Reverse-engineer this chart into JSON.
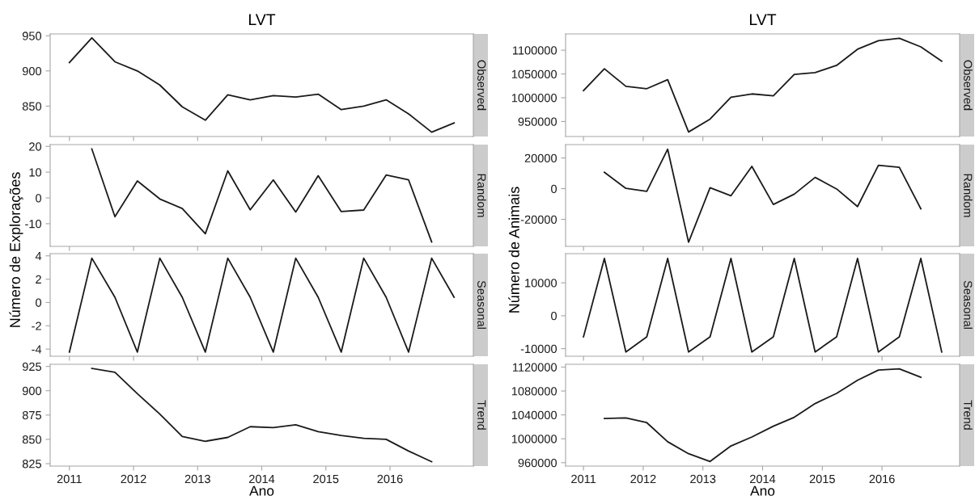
{
  "chart_data": [
    {
      "type": "line",
      "title": "LVT",
      "subtitle": "Observed",
      "ylabel": "Número de Explorações",
      "tick_labels": "y",
      "color": "#1a1a1a",
      "grid": false,
      "x": [
        2011,
        2011.35,
        2011.71,
        2012.06,
        2012.41,
        2012.76,
        2013.12,
        2013.47,
        2013.82,
        2014.18,
        2014.53,
        2014.88,
        2015.24,
        2015.59,
        2015.94,
        2016.29,
        2016.65,
        2017
      ],
      "values": [
        912,
        947,
        913,
        900,
        880,
        849,
        830,
        866,
        859,
        865,
        863,
        867,
        845,
        850,
        859,
        839,
        813,
        826
      ],
      "xlim": [
        2010.7,
        2017.3
      ],
      "xticks": [
        2011,
        2012,
        2013,
        2014,
        2015,
        2016
      ],
      "ylim": [
        806.8,
        952.6
      ],
      "yticks": [
        850,
        900,
        950
      ]
    },
    {
      "type": "line",
      "subtitle": "Random",
      "tick_labels": "y",
      "color": "#1a1a1a",
      "grid": false,
      "x": [
        2011.35,
        2011.71,
        2012.06,
        2012.41,
        2012.76,
        2013.12,
        2013.47,
        2013.82,
        2014.18,
        2014.53,
        2014.88,
        2015.24,
        2015.59,
        2015.94,
        2016.29,
        2016.65
      ],
      "values": [
        19.0,
        -7.3,
        6.6,
        -0.4,
        -4.1,
        -13.9,
        10.5,
        -4.6,
        7.0,
        -5.5,
        8.6,
        -5.3,
        -4.7,
        8.9,
        7.0,
        -17.1
      ],
      "xlim": [
        2010.7,
        2017.3
      ],
      "xticks": [
        2011,
        2012,
        2013,
        2014,
        2015,
        2016
      ],
      "ylim": [
        -18.8,
        20.7
      ],
      "yticks": [
        -10,
        0,
        10,
        20
      ]
    },
    {
      "type": "line",
      "subtitle": "Seasonal",
      "tick_labels": "y",
      "color": "#1a1a1a",
      "grid": false,
      "x": [
        2011,
        2011.35,
        2011.71,
        2012.06,
        2012.41,
        2012.76,
        2013.12,
        2013.47,
        2013.82,
        2014.18,
        2014.53,
        2014.88,
        2015.24,
        2015.59,
        2015.94,
        2016.29,
        2016.65,
        2017
      ],
      "values": [
        -4.25,
        3.8,
        0.45,
        -4.25,
        3.8,
        0.45,
        -4.25,
        3.8,
        0.45,
        -4.25,
        3.8,
        0.45,
        -4.25,
        3.8,
        0.45,
        -4.25,
        3.8,
        0.45
      ],
      "xlim": [
        2010.7,
        2017.3
      ],
      "xticks": [
        2011,
        2012,
        2013,
        2014,
        2015,
        2016
      ],
      "ylim": [
        -4.61,
        4.19
      ],
      "yticks": [
        -4,
        -2,
        0,
        2,
        4
      ]
    },
    {
      "type": "line",
      "subtitle": "Trend",
      "xlabel": "Ano",
      "color": "#1a1a1a",
      "grid": false,
      "x": [
        2011.35,
        2011.71,
        2012.06,
        2012.41,
        2012.76,
        2013.12,
        2013.47,
        2013.82,
        2014.18,
        2014.53,
        2014.88,
        2015.24,
        2015.59,
        2015.94,
        2016.29,
        2016.65
      ],
      "values": [
        923,
        919,
        897,
        876,
        853,
        848,
        852,
        863,
        862,
        865,
        858,
        854,
        851,
        850,
        838,
        827
      ],
      "xlim": [
        2010.7,
        2017.3
      ],
      "xticks": [
        2011,
        2012,
        2013,
        2014,
        2015,
        2016
      ],
      "ylim": [
        822.5,
        927.2
      ],
      "yticks": [
        825,
        850,
        875,
        900,
        925
      ]
    },
    {
      "type": "line",
      "title": "LVT",
      "subtitle": "Observed",
      "ylabel": "Número de Animais",
      "tick_labels": "y",
      "color": "#1a1a1a",
      "grid": false,
      "x": [
        2011,
        2011.35,
        2011.71,
        2012.06,
        2012.41,
        2012.76,
        2013.12,
        2013.47,
        2013.82,
        2014.18,
        2014.53,
        2014.88,
        2015.24,
        2015.59,
        2015.94,
        2016.29,
        2016.65,
        2017
      ],
      "values": [
        1015000,
        1061000,
        1024000,
        1019000,
        1038000,
        928000,
        955000,
        1001000,
        1008000,
        1004000,
        1049000,
        1053000,
        1068000,
        1102000,
        1120000,
        1125000,
        1107000,
        1077000
      ],
      "xlim": [
        2010.7,
        2017.3
      ],
      "xticks": [
        2011,
        2012,
        2013,
        2014,
        2015,
        2016
      ],
      "ylim": [
        918400,
        1134200
      ],
      "yticks": [
        950000,
        1000000,
        1050000,
        1100000
      ]
    },
    {
      "type": "line",
      "subtitle": "Random",
      "tick_labels": "y",
      "color": "#1a1a1a",
      "grid": false,
      "x": [
        2011.35,
        2011.71,
        2012.06,
        2012.41,
        2012.76,
        2013.12,
        2013.47,
        2013.82,
        2014.18,
        2014.53,
        2014.88,
        2015.24,
        2015.59,
        2015.94,
        2016.29,
        2016.65
      ],
      "values": [
        10700,
        200,
        -1800,
        25700,
        -34900,
        600,
        -4600,
        14500,
        -10300,
        -3600,
        7300,
        -200,
        -11700,
        15200,
        13900,
        -13100
      ],
      "xlim": [
        2010.7,
        2017.3
      ],
      "xticks": [
        2011,
        2012,
        2013,
        2014,
        2015,
        2016
      ],
      "ylim": [
        -37600,
        28700
      ],
      "yticks": [
        -20000,
        0,
        20000
      ]
    },
    {
      "type": "line",
      "subtitle": "Seasonal",
      "tick_labels": "y",
      "color": "#1a1a1a",
      "grid": false,
      "x": [
        2011,
        2011.35,
        2011.71,
        2012.06,
        2012.41,
        2012.76,
        2013.12,
        2013.47,
        2013.82,
        2014.18,
        2014.53,
        2014.88,
        2015.24,
        2015.59,
        2015.94,
        2016.29,
        2016.65,
        2017
      ],
      "values": [
        -6400,
        17400,
        -11000,
        -6400,
        17400,
        -11000,
        -6400,
        17400,
        -11000,
        -6400,
        17400,
        -11000,
        -6400,
        17400,
        -11000,
        -6400,
        17400,
        -11000
      ],
      "xlim": [
        2010.7,
        2017.3
      ],
      "xticks": [
        2011,
        2012,
        2013,
        2014,
        2015,
        2016
      ],
      "ylim": [
        -12290,
        18860
      ],
      "yticks": [
        -10000,
        0,
        10000
      ]
    },
    {
      "type": "line",
      "subtitle": "Trend",
      "xlabel": "Ano",
      "color": "#1a1a1a",
      "grid": false,
      "x": [
        2011.35,
        2011.71,
        2012.06,
        2012.41,
        2012.76,
        2013.12,
        2013.47,
        2013.82,
        2014.18,
        2014.53,
        2014.88,
        2015.24,
        2015.59,
        2015.94,
        2016.29,
        2016.65
      ],
      "values": [
        1034000,
        1035000,
        1027000,
        995000,
        975000,
        962000,
        988000,
        1003000,
        1021000,
        1036000,
        1059000,
        1076000,
        1098000,
        1115000,
        1117000,
        1103000
      ],
      "xlim": [
        2010.7,
        2017.3
      ],
      "xticks": [
        2011,
        2012,
        2013,
        2014,
        2015,
        2016
      ],
      "ylim": [
        954300,
        1124700
      ],
      "yticks": [
        960000,
        1000000,
        1040000,
        1080000,
        1120000
      ]
    }
  ]
}
